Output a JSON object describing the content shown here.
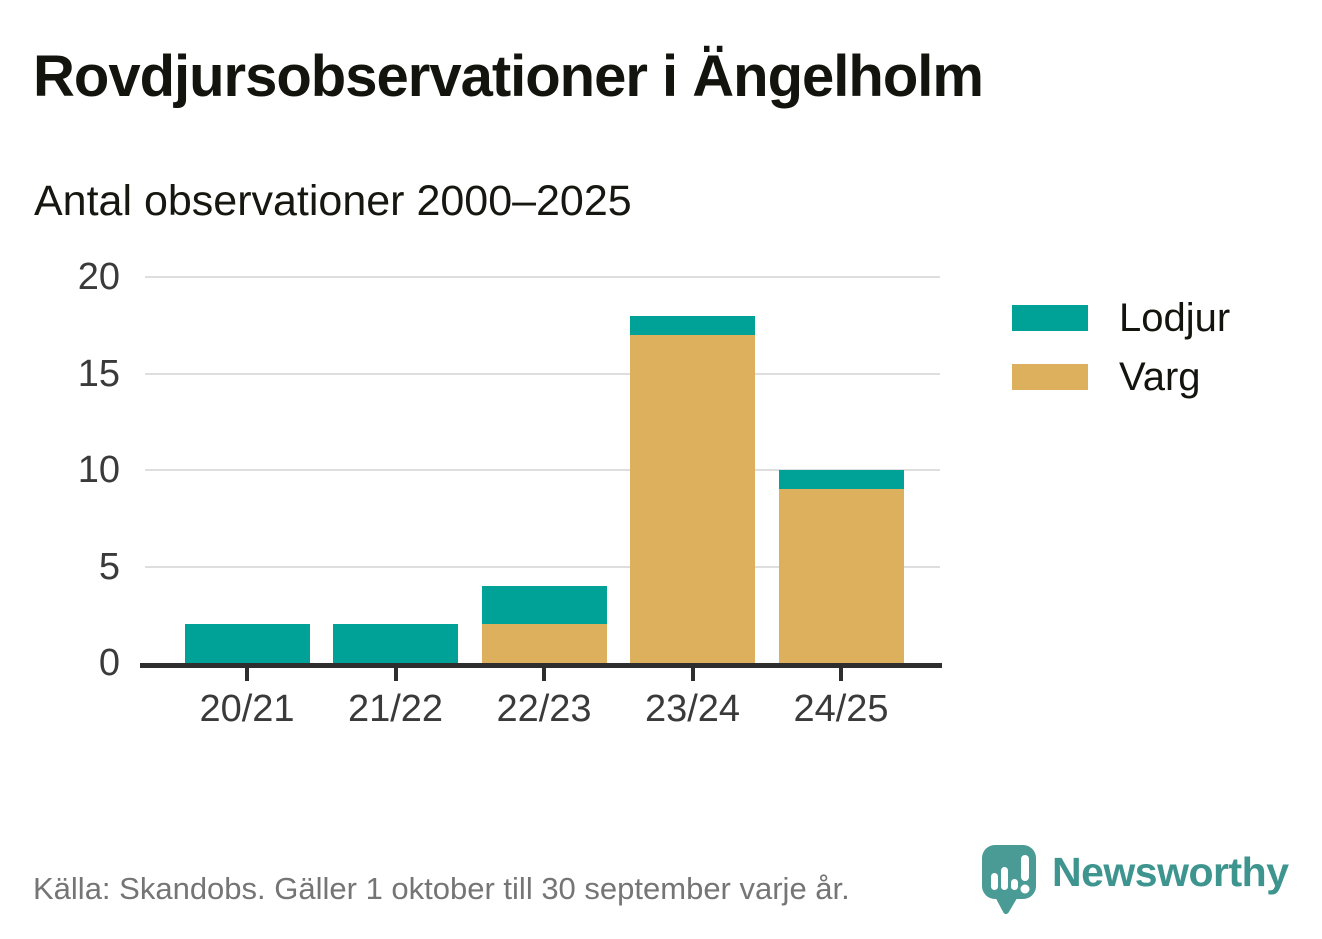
{
  "header": {
    "title": "Rovdjursobservationer i Ängelholm",
    "subtitle": "Antal observationer 2000–2025"
  },
  "chart_data": {
    "type": "bar",
    "stacked": true,
    "title": "Rovdjursobservationer i Ängelholm",
    "subtitle": "Antal observationer 2000–2025",
    "categories": [
      "20/21",
      "21/22",
      "22/23",
      "23/24",
      "24/25"
    ],
    "series": [
      {
        "name": "Varg",
        "color": "#DCB05C",
        "values": [
          0,
          0,
          2,
          17,
          9
        ]
      },
      {
        "name": "Lodjur",
        "color": "#00A298",
        "values": [
          2,
          2,
          2,
          1,
          1
        ]
      }
    ],
    "stack_totals": [
      2,
      2,
      4,
      18,
      10
    ],
    "legend": [
      {
        "label": "Lodjur",
        "color": "#00A298"
      },
      {
        "label": "Varg",
        "color": "#DCB05C"
      }
    ],
    "legend_position": "right",
    "y_ticks": [
      0,
      5,
      10,
      15,
      20
    ],
    "ylim": [
      0,
      20
    ],
    "grid": "horizontal-only",
    "xlabel": "",
    "ylabel": ""
  },
  "footer": {
    "source": "Källa: Skandobs. Gäller 1 oktober till 30 september varje år.",
    "brand": "Newsworthy"
  },
  "colors": {
    "lodjur": "#00A298",
    "varg": "#DCB05C",
    "brand_teal": "#3E948E",
    "logo_bubble": "#4A9B95",
    "axis": "#2E2E2E",
    "gridline": "#DEDEDE",
    "tick_label": "#3A3A3A",
    "source_text": "#757575",
    "background": "#FFFFFF"
  }
}
